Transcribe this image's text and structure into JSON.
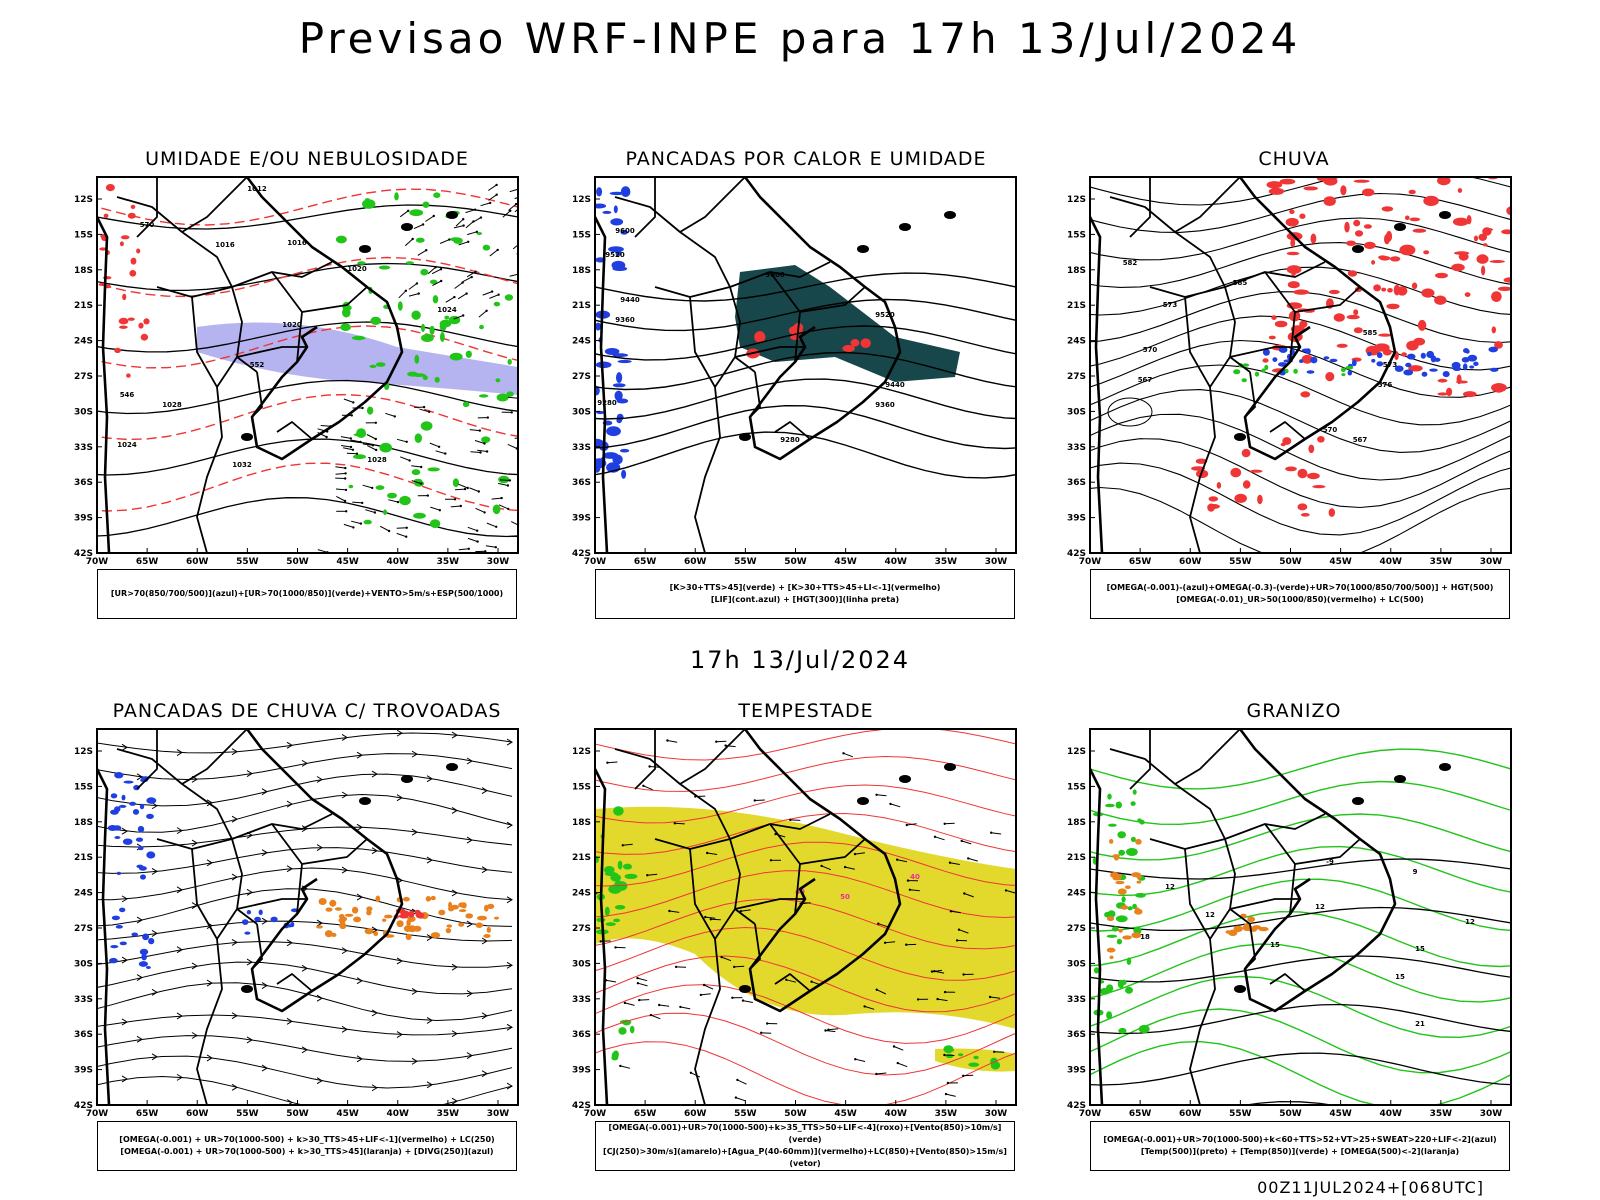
{
  "header": {
    "title": "Previsao WRF-INPE  para 17h 13/Jul/2024",
    "subtitle": "17h 13/Jul/2024"
  },
  "footer": {
    "run_code": "00Z11JUL2024+[068UTC]"
  },
  "axes": {
    "lat_labels": [
      "12S",
      "15S",
      "18S",
      "21S",
      "24S",
      "27S",
      "30S",
      "33S",
      "36S",
      "39S",
      "42S"
    ],
    "lon_labels": [
      "70W",
      "65W",
      "60W",
      "55W",
      "50W",
      "45W",
      "40W",
      "35W",
      "30W"
    ]
  },
  "colors": {
    "blue": "#1f3fe0",
    "green": "#22c41a",
    "red": "#ef3535",
    "orange": "#e8821e",
    "yellow": "#e3d92d",
    "darkteal": "#17474a",
    "lavender": "#a9a6ee",
    "magenta": "#ee2aa0"
  },
  "panels": [
    {
      "title": "UMIDADE E/OU NEBULOSIDADE",
      "legend": [
        "[UR>70(850/700/500)](azul)+[UR>70(1000/850)](verde)+VENTO>5m/s+ESP(500/1000)"
      ],
      "contour_labels": [
        "1012",
        "1016",
        "1016",
        "1020",
        "1020",
        "1024",
        "1024",
        "1028",
        "1028",
        "1032",
        "570",
        "552",
        "546"
      ]
    },
    {
      "title": "PANCADAS POR CALOR E UMIDADE",
      "legend": [
        "[K>30+TTS>45](verde) + [K>30+TTS>45+LI<-1](vermelho)",
        "[LIF](cont.azul) + [HGT(300)](linha preta)"
      ],
      "contour_labels": [
        "9600",
        "9520",
        "9440",
        "9360",
        "9280",
        "9600",
        "9520",
        "9440",
        "9360",
        "9280"
      ]
    },
    {
      "title": "CHUVA",
      "legend": [
        "[OMEGA(-0.001)-(azul)+OMEGA(-0.3)-(verde)+UR>70(1000/850/700/500)] + HGT(500)",
        "[OMEGA(-0.01)_UR>50(1000/850)(vermelho) + LC(500)"
      ],
      "contour_labels": [
        "582",
        "585",
        "573",
        "570",
        "567",
        "576",
        "573",
        "570",
        "567",
        "585"
      ]
    },
    {
      "title": "PANCADAS DE CHUVA C/ TROVOADAS",
      "legend": [
        "[OMEGA(-0.001) + UR>70(1000-500) + k>30_TTS>45+LIF<-1](vermelho) + LC(250)",
        "[OMEGA(-0.001) + UR>70(1000-500) + k>30_TTS>45](laranja) + [DIVG(250)](azul)"
      ],
      "contour_labels": []
    },
    {
      "title": "TEMPESTADE",
      "legend": [
        "[OMEGA(-0.001)+UR>70(1000-500)+k>35_TTS>50+LIF<-4](roxo)+[Vento(850)>10m/s](verde)",
        "[CJ(250)>30m/s](amarelo)+[Agua_P(40-60mm)](vermelho)+LC(850)+[Vento(850)>15m/s](vetor)"
      ],
      "contour_labels": [
        "40",
        "50",
        "40"
      ]
    },
    {
      "title": "GRANIZO",
      "legend": [
        "[OMEGA(-0.001)+UR>70(1000-500)+k<60+TTS>52+VT>25+SWEAT>220+LIF<-2](azul)",
        "[Temp(500)](preto) + [Temp(850)](verde) + [OMEGA(500)<-2](laranja)"
      ],
      "contour_labels": [
        "12",
        "18",
        "15",
        "12",
        "9",
        "12",
        "15",
        "15",
        "21",
        "-9",
        "12"
      ]
    }
  ]
}
